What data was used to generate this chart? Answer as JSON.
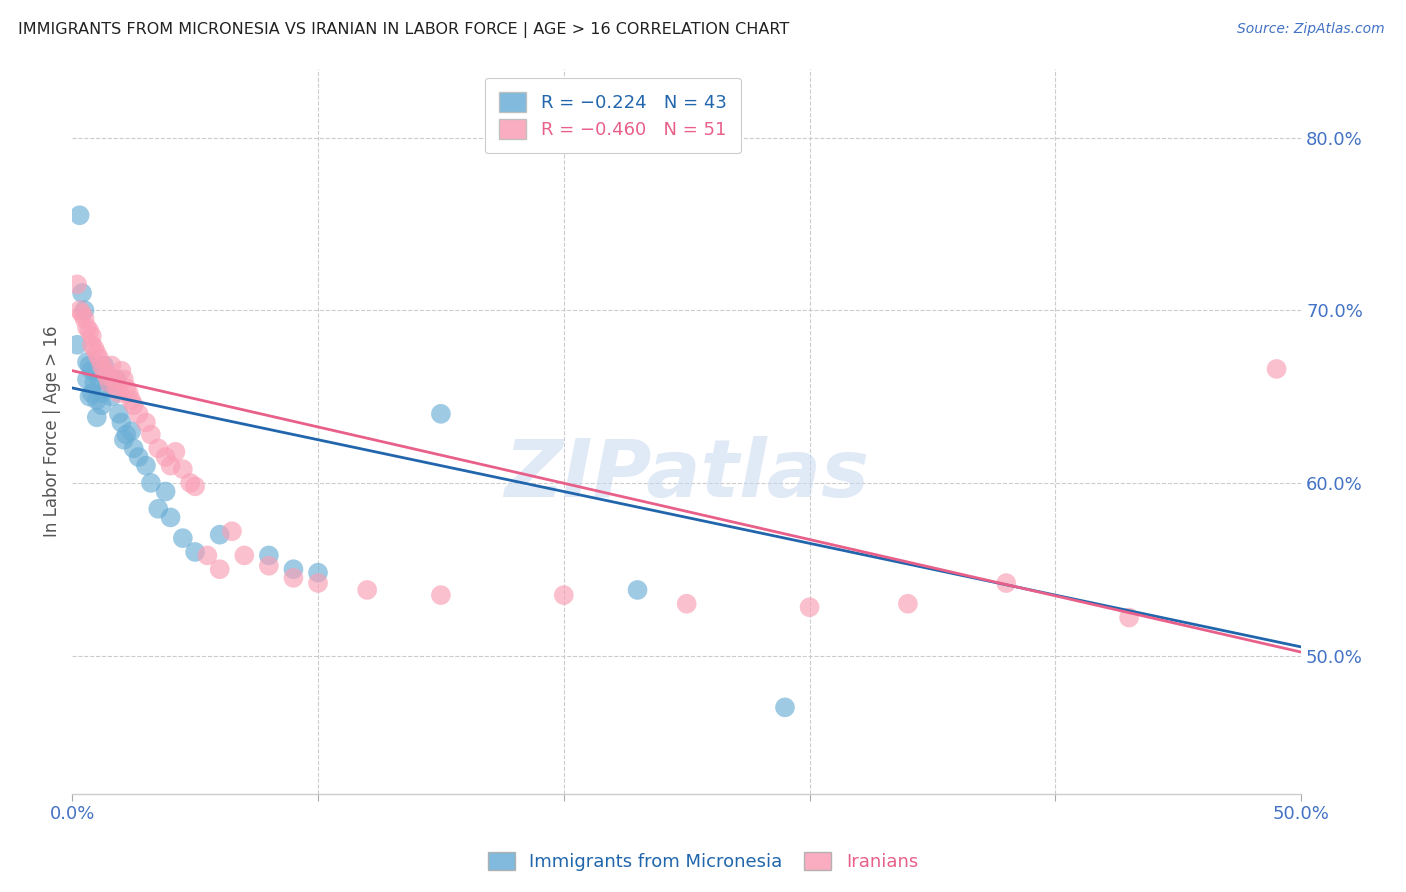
{
  "title": "IMMIGRANTS FROM MICRONESIA VS IRANIAN IN LABOR FORCE | AGE > 16 CORRELATION CHART",
  "source_text": "Source: ZipAtlas.com",
  "ylabel": "In Labor Force | Age > 16",
  "ylabel_ticks": [
    "80.0%",
    "70.0%",
    "60.0%",
    "50.0%"
  ],
  "ytick_vals": [
    0.8,
    0.7,
    0.6,
    0.5
  ],
  "xlim": [
    0.0,
    0.5
  ],
  "ylim": [
    0.42,
    0.84
  ],
  "legend_blue_r": "R = −0.224",
  "legend_blue_n": "N = 43",
  "legend_pink_r": "R = −0.460",
  "legend_pink_n": "N = 51",
  "color_blue": "#6baed6",
  "color_pink": "#fa9fb5",
  "color_blue_line": "#2166ac",
  "color_pink_line": "#e8608a",
  "color_axis": "#4472c4",
  "watermark": "ZIPatlas",
  "grid_color": "#cccccc",
  "blue_x": [
    0.002,
    0.003,
    0.004,
    0.005,
    0.006,
    0.006,
    0.007,
    0.007,
    0.008,
    0.008,
    0.009,
    0.01,
    0.01,
    0.011,
    0.012,
    0.012,
    0.013,
    0.014,
    0.015,
    0.016,
    0.017,
    0.018,
    0.019,
    0.02,
    0.021,
    0.022,
    0.024,
    0.025,
    0.027,
    0.03,
    0.032,
    0.035,
    0.038,
    0.04,
    0.045,
    0.05,
    0.06,
    0.08,
    0.09,
    0.1,
    0.15,
    0.23,
    0.29
  ],
  "blue_y": [
    0.68,
    0.755,
    0.71,
    0.7,
    0.67,
    0.66,
    0.668,
    0.65,
    0.665,
    0.652,
    0.658,
    0.648,
    0.638,
    0.66,
    0.652,
    0.645,
    0.668,
    0.66,
    0.658,
    0.65,
    0.66,
    0.66,
    0.64,
    0.635,
    0.625,
    0.628,
    0.63,
    0.62,
    0.615,
    0.61,
    0.6,
    0.585,
    0.595,
    0.58,
    0.568,
    0.56,
    0.57,
    0.558,
    0.55,
    0.548,
    0.64,
    0.538,
    0.47
  ],
  "pink_x": [
    0.002,
    0.003,
    0.004,
    0.005,
    0.006,
    0.007,
    0.008,
    0.008,
    0.009,
    0.01,
    0.011,
    0.012,
    0.013,
    0.014,
    0.015,
    0.016,
    0.017,
    0.018,
    0.019,
    0.02,
    0.021,
    0.022,
    0.023,
    0.024,
    0.025,
    0.027,
    0.03,
    0.032,
    0.035,
    0.038,
    0.04,
    0.042,
    0.045,
    0.048,
    0.05,
    0.055,
    0.06,
    0.065,
    0.07,
    0.08,
    0.09,
    0.1,
    0.12,
    0.15,
    0.2,
    0.25,
    0.3,
    0.34,
    0.38,
    0.43,
    0.49
  ],
  "pink_y": [
    0.715,
    0.7,
    0.698,
    0.695,
    0.69,
    0.688,
    0.685,
    0.68,
    0.678,
    0.675,
    0.672,
    0.668,
    0.665,
    0.662,
    0.658,
    0.668,
    0.66,
    0.655,
    0.652,
    0.665,
    0.66,
    0.655,
    0.652,
    0.648,
    0.645,
    0.64,
    0.635,
    0.628,
    0.62,
    0.615,
    0.61,
    0.618,
    0.608,
    0.6,
    0.598,
    0.558,
    0.55,
    0.572,
    0.558,
    0.552,
    0.545,
    0.542,
    0.538,
    0.535,
    0.535,
    0.53,
    0.528,
    0.53,
    0.542,
    0.522,
    0.666
  ]
}
